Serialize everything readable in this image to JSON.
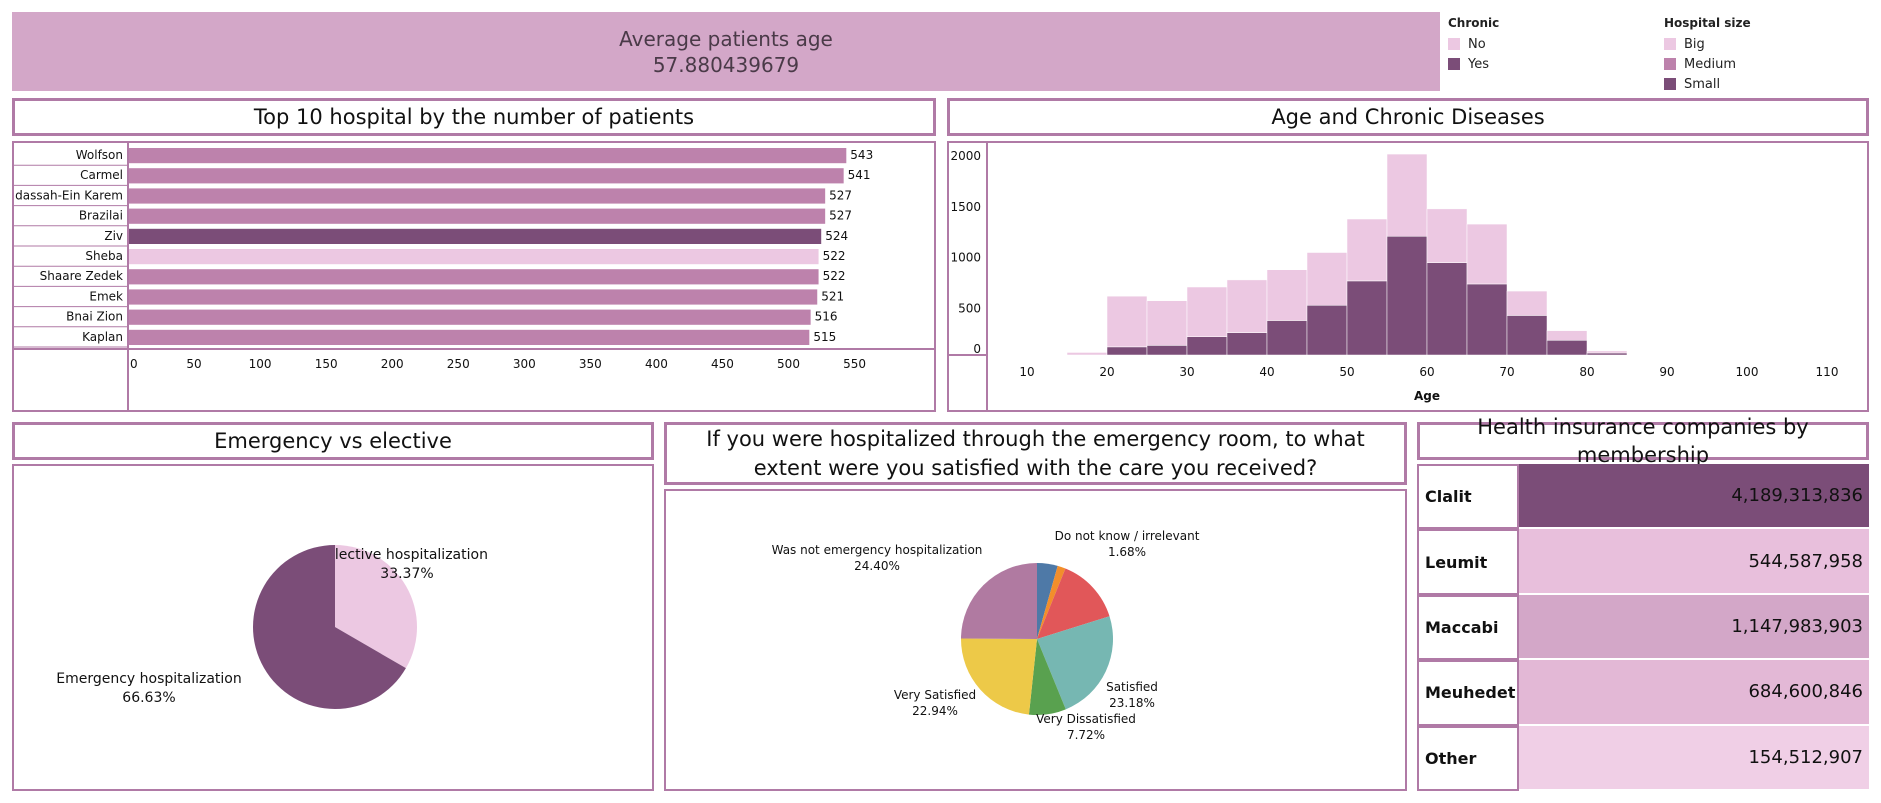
{
  "kpi": {
    "label": "Average patients age",
    "value": "57.880439679"
  },
  "legends": {
    "chronic": {
      "title": "Chronic",
      "items": [
        {
          "label": "No",
          "color": "#ecc8e2"
        },
        {
          "label": "Yes",
          "color": "#7b4d78"
        }
      ]
    },
    "hospital_size": {
      "title": "Hospital size",
      "items": [
        {
          "label": "Big",
          "color": "#ecc8e2"
        },
        {
          "label": "Medium",
          "color": "#bd82ac"
        },
        {
          "label": "Small",
          "color": "#7b4d78"
        }
      ]
    }
  },
  "titles": {
    "top10": "Top 10 hospital by the number of patients",
    "age": "Age and Chronic Diseases",
    "emergency": "Emergency vs elective",
    "satisfaction": "If you were hospitalized through the emergency room, to what extent were you satisfied with the care you received?",
    "insurance": "Health insurance companies by membership"
  },
  "chart_data": [
    {
      "type": "bar",
      "orientation": "horizontal",
      "categories": [
        "Wolfson",
        "Carmel",
        "Hadassah-Ein Karem",
        "Brazilai",
        "Ziv",
        "Sheba",
        "Shaare Zedek",
        "Emek",
        "Bnai Zion",
        "Kaplan"
      ],
      "values": [
        543,
        541,
        527,
        527,
        524,
        522,
        522,
        521,
        516,
        515
      ],
      "hospital_size": [
        "Medium",
        "Medium",
        "Medium",
        "Medium",
        "Small",
        "Big",
        "Medium",
        "Medium",
        "Medium",
        "Medium"
      ],
      "xticks": [
        "0",
        "50",
        "100",
        "150",
        "200",
        "250",
        "300",
        "350",
        "400",
        "450",
        "500",
        "550"
      ],
      "xlim": [
        0,
        595
      ]
    },
    {
      "type": "bar",
      "stacked": true,
      "xlabel": "Age",
      "xticks": [
        "10",
        "20",
        "30",
        "40",
        "50",
        "60",
        "70",
        "80",
        "90",
        "100",
        "110"
      ],
      "yticks": [
        "0",
        "500",
        "1000",
        "1500",
        "2000"
      ],
      "xlim": [
        5,
        115
      ],
      "ylim": [
        0,
        2030
      ],
      "bin_width": 5,
      "bins": [
        15,
        20,
        25,
        30,
        35,
        40,
        45,
        50,
        55,
        60,
        65,
        70,
        75,
        80,
        85,
        90,
        95,
        100
      ],
      "series": [
        {
          "name": "Yes",
          "values": [
            0,
            80,
            95,
            180,
            220,
            340,
            490,
            730,
            1170,
            910,
            700,
            390,
            145,
            20,
            0,
            0,
            0,
            0
          ]
        },
        {
          "name": "No",
          "values": [
            25,
            500,
            440,
            490,
            520,
            500,
            520,
            610,
            810,
            530,
            590,
            240,
            95,
            20,
            0,
            0,
            0,
            0
          ]
        }
      ]
    },
    {
      "type": "pie",
      "slices": [
        {
          "label": "Elective hospitalization",
          "pct": "33.37%",
          "value": 33.37,
          "color": "#ecc8e2"
        },
        {
          "label": "Emergency hospitalization",
          "pct": "66.63%",
          "value": 66.63,
          "color": "#7b4d78"
        }
      ]
    },
    {
      "type": "pie",
      "slices": [
        {
          "label": "",
          "pct": "",
          "value": 4.3,
          "color": "#4e79a7"
        },
        {
          "label": "Do not know / irrelevant",
          "pct": "1.68%",
          "value": 1.68,
          "color": "#f28e2b"
        },
        {
          "label": "",
          "pct": "",
          "value": 13.78,
          "color": "#e15759"
        },
        {
          "label": "Satisfied",
          "pct": "23.18%",
          "value": 23.18,
          "color": "#76b7b2"
        },
        {
          "label": "Very Dissatisfied",
          "pct": "7.72%",
          "value": 7.72,
          "color": "#59a14f"
        },
        {
          "label": "Very Satisfied",
          "pct": "22.94%",
          "value": 22.94,
          "color": "#edc948"
        },
        {
          "label": "Was not emergency hospitalization",
          "pct": "24.40%",
          "value": 24.4,
          "color": "#b07aa1"
        }
      ]
    },
    {
      "type": "table",
      "rows": [
        {
          "name": "Clalit",
          "value": "4,189,313,836",
          "color": "#7b4d78"
        },
        {
          "name": "Leumit",
          "value": "544,587,958",
          "color": "#e8bfdc"
        },
        {
          "name": "Maccabi",
          "value": "1,147,983,903",
          "color": "#d3a7c8"
        },
        {
          "name": "Meuhedet",
          "value": "684,600,846",
          "color": "#e3b8d6"
        },
        {
          "name": "Other",
          "value": "154,512,907",
          "color": "#f0cfe6"
        }
      ]
    }
  ]
}
